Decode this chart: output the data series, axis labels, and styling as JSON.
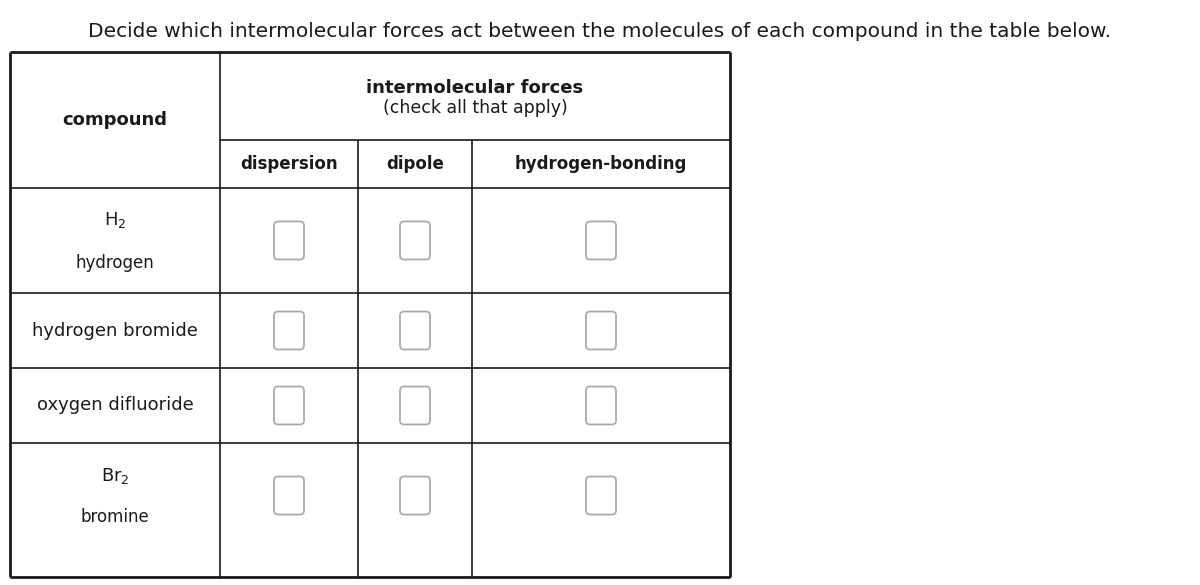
{
  "title": "Decide which intermolecular forces act between the molecules of each compound in the table below.",
  "title_fontsize": 14.5,
  "header_col1": "compound",
  "header_span_line1": "intermolecular forces",
  "header_span_line2": "(check all that apply)",
  "header_fontsize": 13,
  "sub_headers": [
    "dispersion",
    "dipole",
    "hydrogen-bonding"
  ],
  "sub_header_fontsize": 12,
  "bg_color": "#ffffff",
  "border_color": "#1a1a1a",
  "checkbox_edge_color": "#aaaaaa",
  "text_color": "#1a1a1a",
  "row_labels": [
    [
      "H$_2$",
      "hydrogen"
    ],
    [
      "hydrogen bromide",
      null
    ],
    [
      "oxygen difluoride",
      null
    ],
    [
      "Br$_2$",
      "bromine"
    ]
  ],
  "label_fontsize": 13,
  "sublabel_fontsize": 12,
  "fig_width": 12.0,
  "fig_height": 5.85,
  "dpi": 100
}
